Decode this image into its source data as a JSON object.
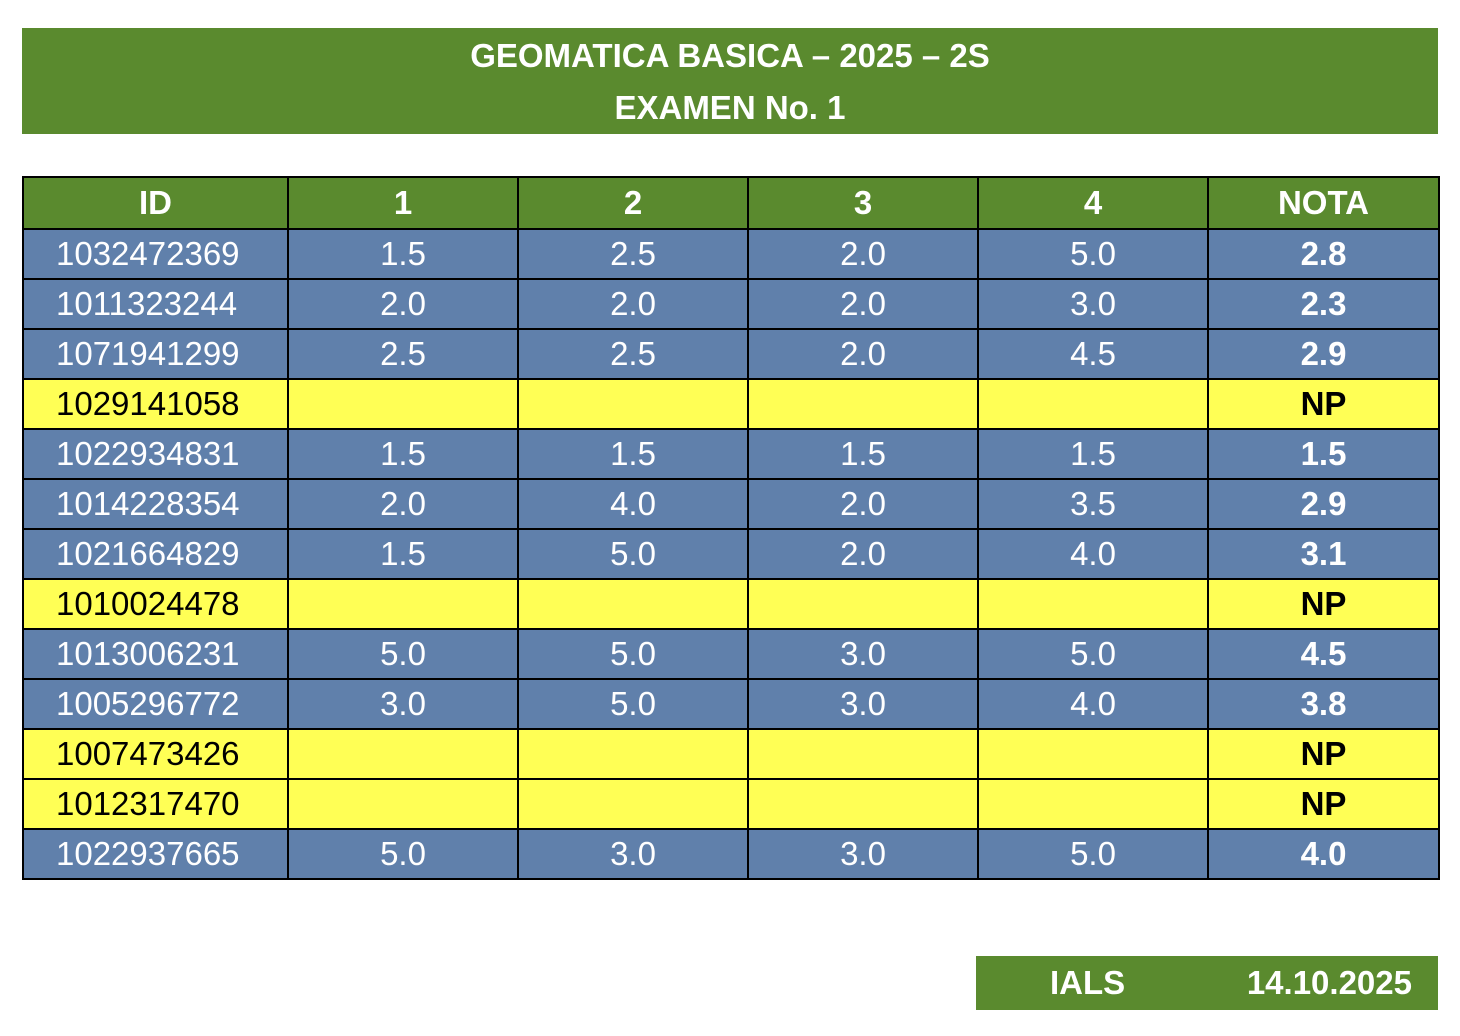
{
  "header": {
    "title": "GEOMATICA BASICA – 2025 – 2S",
    "subtitle": "EXAMEN No. 1"
  },
  "table": {
    "columns": [
      "ID",
      "1",
      "2",
      "3",
      "4",
      "NOTA"
    ],
    "rows": [
      {
        "id": "1032472369",
        "q1": "1.5",
        "q2": "2.5",
        "q3": "2.0",
        "q4": "5.0",
        "nota": "2.8",
        "status": "present"
      },
      {
        "id": "1011323244",
        "q1": "2.0",
        "q2": "2.0",
        "q3": "2.0",
        "q4": "3.0",
        "nota": "2.3",
        "status": "present"
      },
      {
        "id": "1071941299",
        "q1": "2.5",
        "q2": "2.5",
        "q3": "2.0",
        "q4": "4.5",
        "nota": "2.9",
        "status": "present"
      },
      {
        "id": "1029141058",
        "q1": "",
        "q2": "",
        "q3": "",
        "q4": "",
        "nota": "NP",
        "status": "absent"
      },
      {
        "id": "1022934831",
        "q1": "1.5",
        "q2": "1.5",
        "q3": "1.5",
        "q4": "1.5",
        "nota": "1.5",
        "status": "present"
      },
      {
        "id": "1014228354",
        "q1": "2.0",
        "q2": "4.0",
        "q3": "2.0",
        "q4": "3.5",
        "nota": "2.9",
        "status": "present"
      },
      {
        "id": "1021664829",
        "q1": "1.5",
        "q2": "5.0",
        "q3": "2.0",
        "q4": "4.0",
        "nota": "3.1",
        "status": "present"
      },
      {
        "id": "1010024478",
        "q1": "",
        "q2": "",
        "q3": "",
        "q4": "",
        "nota": "NP",
        "status": "absent"
      },
      {
        "id": "1013006231",
        "q1": "5.0",
        "q2": "5.0",
        "q3": "3.0",
        "q4": "5.0",
        "nota": "4.5",
        "status": "present"
      },
      {
        "id": "1005296772",
        "q1": "3.0",
        "q2": "5.0",
        "q3": "3.0",
        "q4": "4.0",
        "nota": "3.8",
        "status": "present"
      },
      {
        "id": "1007473426",
        "q1": "",
        "q2": "",
        "q3": "",
        "q4": "",
        "nota": "NP",
        "status": "absent"
      },
      {
        "id": "1012317470",
        "q1": "",
        "q2": "",
        "q3": "",
        "q4": "",
        "nota": "NP",
        "status": "absent"
      },
      {
        "id": "1022937665",
        "q1": "5.0",
        "q2": "3.0",
        "q3": "3.0",
        "q4": "5.0",
        "nota": "4.0",
        "status": "present"
      }
    ]
  },
  "footer": {
    "author": "IALS",
    "date": "14.10.2025"
  },
  "colors": {
    "header_green": "#5a8a2e",
    "present_row_blue": "#6080ab",
    "absent_row_yellow": "#ffff55"
  }
}
